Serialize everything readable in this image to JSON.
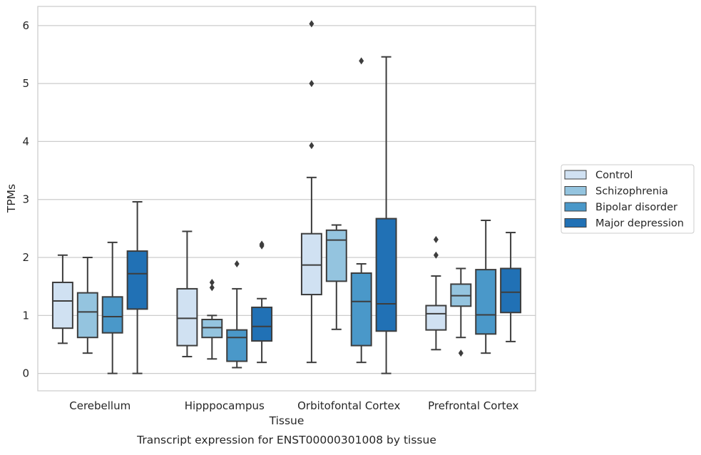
{
  "chart_data": {
    "type": "boxplot",
    "title": "",
    "xlabel": "Tissue",
    "ylabel": "TPMs",
    "caption": "Transcript expression for ENST00000301008 by tissue",
    "categories": [
      "Cerebellum",
      "Hipppocampus",
      "Orbitofontal Cortex",
      "Prefrontal Cortex"
    ],
    "ylim": [
      -0.3,
      6.33
    ],
    "yticks": [
      0,
      1,
      2,
      3,
      4,
      5,
      6
    ],
    "grid": "y",
    "legend_position": "right",
    "series": [
      {
        "name": "Control",
        "color": "#d0e1f2",
        "boxes": [
          {
            "whislo": 0.52,
            "q1": 0.78,
            "med": 1.25,
            "q3": 1.57,
            "whishi": 2.04,
            "fliers": []
          },
          {
            "whislo": 0.29,
            "q1": 0.48,
            "med": 0.95,
            "q3": 1.46,
            "whishi": 2.45,
            "fliers": []
          },
          {
            "whislo": 0.19,
            "q1": 1.36,
            "med": 1.87,
            "q3": 2.41,
            "whishi": 3.38,
            "fliers": [
              5.0,
              3.93,
              6.03
            ]
          },
          {
            "whislo": 0.41,
            "q1": 0.75,
            "med": 1.03,
            "q3": 1.17,
            "whishi": 1.68,
            "fliers": [
              2.04,
              2.31
            ]
          }
        ]
      },
      {
        "name": "Schizophrenia",
        "color": "#94c4df",
        "boxes": [
          {
            "whislo": 0.35,
            "q1": 0.62,
            "med": 1.06,
            "q3": 1.39,
            "whishi": 2.0,
            "fliers": []
          },
          {
            "whislo": 0.25,
            "q1": 0.62,
            "med": 0.79,
            "q3": 0.93,
            "whishi": 1.0,
            "fliers": [
              1.48,
              1.57
            ]
          },
          {
            "whislo": 0.76,
            "q1": 1.59,
            "med": 2.3,
            "q3": 2.47,
            "whishi": 2.56,
            "fliers": []
          },
          {
            "whislo": 0.62,
            "q1": 1.16,
            "med": 1.34,
            "q3": 1.54,
            "whishi": 1.81,
            "fliers": [
              0.35
            ]
          }
        ]
      },
      {
        "name": "Bipolar disorder",
        "color": "#4a98c9",
        "boxes": [
          {
            "whislo": 0.0,
            "q1": 0.7,
            "med": 0.98,
            "q3": 1.32,
            "whishi": 2.26,
            "fliers": []
          },
          {
            "whislo": 0.1,
            "q1": 0.21,
            "med": 0.62,
            "q3": 0.75,
            "whishi": 1.46,
            "fliers": [
              1.89
            ]
          },
          {
            "whislo": 0.19,
            "q1": 0.48,
            "med": 1.24,
            "q3": 1.73,
            "whishi": 1.89,
            "fliers": [
              5.39
            ]
          },
          {
            "whislo": 0.35,
            "q1": 0.68,
            "med": 1.01,
            "q3": 1.79,
            "whishi": 2.64,
            "fliers": []
          }
        ]
      },
      {
        "name": "Major depression",
        "color": "#2171b5",
        "boxes": [
          {
            "whislo": 0.0,
            "q1": 1.11,
            "med": 1.72,
            "q3": 2.11,
            "whishi": 2.96,
            "fliers": []
          },
          {
            "whislo": 0.19,
            "q1": 0.56,
            "med": 0.81,
            "q3": 1.14,
            "whishi": 1.29,
            "fliers": [
              2.2,
              2.23
            ]
          },
          {
            "whislo": 0.0,
            "q1": 0.73,
            "med": 1.2,
            "q3": 2.67,
            "whishi": 5.46,
            "fliers": []
          },
          {
            "whislo": 0.55,
            "q1": 1.05,
            "med": 1.4,
            "q3": 1.81,
            "whishi": 2.43,
            "fliers": []
          }
        ]
      }
    ]
  }
}
